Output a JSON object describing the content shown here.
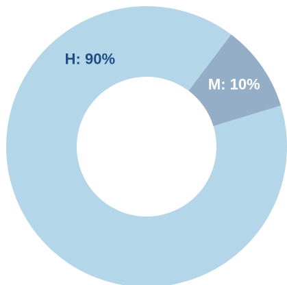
{
  "chart_data": {
    "type": "pie",
    "donut": true,
    "title": "",
    "slices": [
      {
        "label": "M: 10%",
        "category": "M",
        "value": 10,
        "color": "#94aec7",
        "text_color": "#ffffff"
      },
      {
        "label": "H: 90%",
        "category": "H",
        "value": 90,
        "color": "#b3d6e8",
        "text_color": "#1d4f84"
      }
    ],
    "start_angle_deg": 37,
    "direction": "clockwise"
  }
}
